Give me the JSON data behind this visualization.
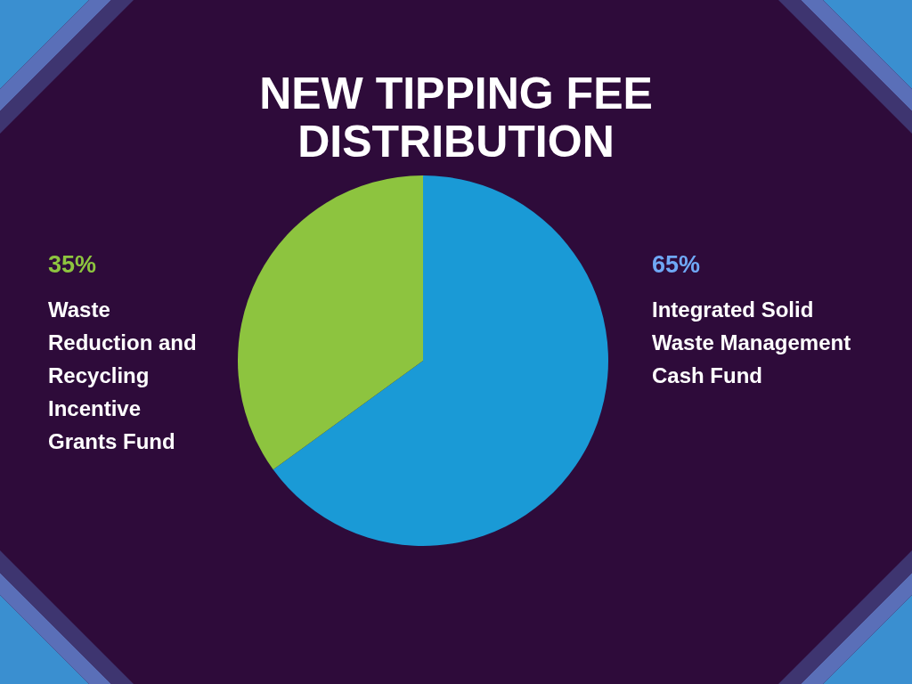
{
  "chart_data": {
    "type": "pie",
    "title": "NEW TIPPING FEE DISTRIBUTION",
    "categories": [
      "Integrated Solid Waste Management Cash Fund",
      "Waste Reduction and Recycling Incentive Grants Fund"
    ],
    "values": [
      65,
      35
    ],
    "colors": [
      "#1a9ad6",
      "#8dc43f"
    ],
    "value_labels": [
      "65%",
      "35%"
    ]
  }
}
